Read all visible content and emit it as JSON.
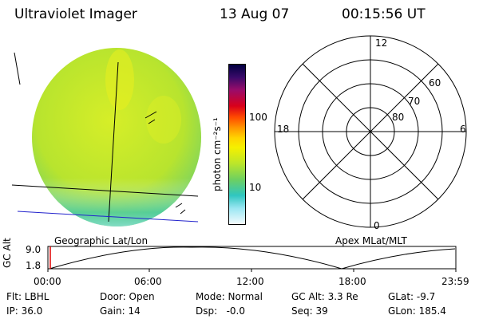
{
  "header": {
    "instrument": "Ultraviolet Imager",
    "date": "13 Aug 07",
    "time": "00:15:56 UT"
  },
  "colorbar": {
    "unit_label": "photon cm⁻²s⁻¹",
    "ticks": [
      "100",
      "10"
    ],
    "colors": [
      "#000040",
      "#3a0a6a",
      "#9a0c6a",
      "#d9001a",
      "#ff4a00",
      "#ff9a00",
      "#ffd400",
      "#f5f000",
      "#bce62a",
      "#6ed060",
      "#2fc6c0",
      "#9ae6f2",
      "#f3fbfd"
    ]
  },
  "globe": {
    "label": "Geographic Lat/Lon"
  },
  "polar": {
    "label": "Apex MLat/MLT",
    "mlt_labels": [
      "12",
      "18",
      "6",
      "0"
    ],
    "lat_labels": [
      "60",
      "70",
      "80"
    ]
  },
  "timeline": {
    "y_label": "GC Alt",
    "y_ticks": [
      "9.0",
      "1.8"
    ],
    "x_ticks": [
      "00:00",
      "06:00",
      "12:00",
      "18:00",
      "23:59"
    ]
  },
  "status": {
    "flt": "Flt: LBHL",
    "door": "Door: Open",
    "mode": "Mode: Normal",
    "gc_alt": "GC Alt: 3.3 Re",
    "glat": "GLat:  -9.7",
    "ip": "IP: 36.0",
    "gain": "Gain: 14",
    "dsp": "Dsp:   -0.0",
    "seq": "Seq: 39",
    "glon": "GLon: 185.4"
  }
}
